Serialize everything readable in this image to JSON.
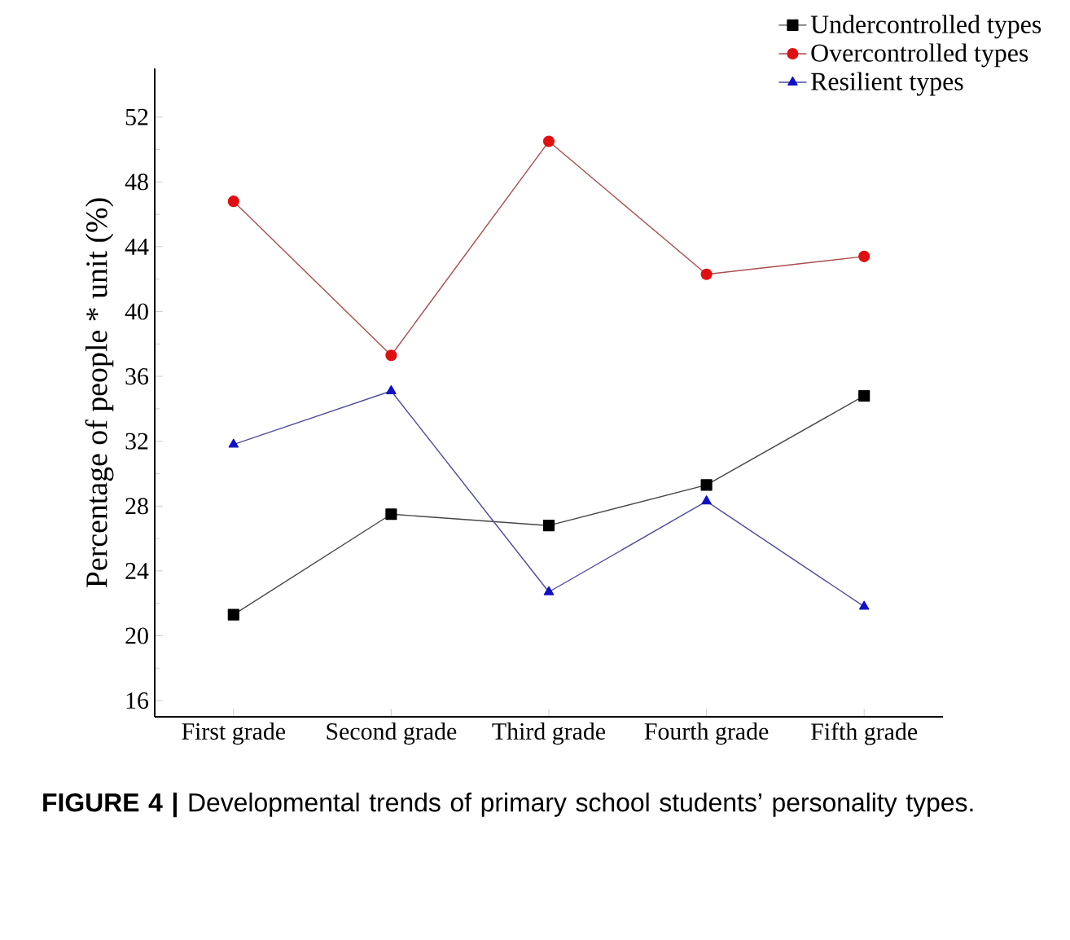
{
  "chart_data": {
    "type": "line",
    "ylabel": "Percentage of people * unit (%)",
    "categories": [
      "First grade",
      "Second grade",
      "Third grade",
      "Fourth grade",
      "Fifth grade"
    ],
    "series": [
      {
        "name": "Undercontrolled types",
        "color": "#000000",
        "marker": "square",
        "values": [
          21.3,
          27.5,
          26.8,
          29.3,
          34.8
        ]
      },
      {
        "name": "Overcontrolled types",
        "color": "#e01010",
        "marker": "circle",
        "values": [
          46.8,
          37.3,
          50.5,
          42.3,
          43.4
        ]
      },
      {
        "name": "Resilient types",
        "color": "#1010c8",
        "marker": "triangle",
        "values": [
          31.8,
          35.1,
          22.7,
          28.3,
          21.8
        ]
      }
    ],
    "ylim": [
      15,
      55
    ],
    "yticks": [
      16,
      20,
      24,
      28,
      32,
      36,
      40,
      44,
      48,
      52
    ],
    "legend": "top right",
    "line_style": "solid",
    "annotations": [
      "**FIGURE 4 |** Developmental trends of primary school students’ personality types."
    ]
  }
}
